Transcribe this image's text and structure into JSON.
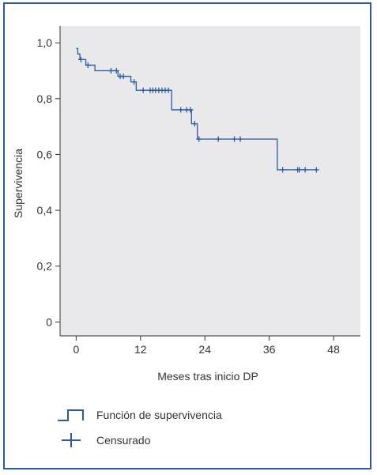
{
  "chart_data": {
    "type": "line",
    "subtype": "kaplan-meier-step",
    "xlabel": "Meses tras inicio DP",
    "ylabel": "Supervivencia",
    "xlim": [
      -3,
      53
    ],
    "ylim": [
      -0.05,
      1.06
    ],
    "xticks": [
      0,
      12,
      24,
      36,
      48
    ],
    "xtick_labels": [
      "0",
      "12",
      "24",
      "36",
      "48"
    ],
    "yticks": [
      0,
      0.2,
      0.4,
      0.6,
      0.8,
      1.0
    ],
    "ytick_labels": [
      "0",
      "0,2",
      "0,4",
      "0,6",
      "0,8",
      "1,0"
    ],
    "grid": false,
    "colors": {
      "plot_bg": "#e9e9eb",
      "series": "#2b5aa0",
      "frame": "#2b5aa0",
      "axis": "#333333"
    },
    "series": [
      {
        "name": "Función de supervivencia",
        "kind": "step",
        "points": [
          [
            0,
            0.98
          ],
          [
            0.3,
            0.96
          ],
          [
            0.7,
            0.94
          ],
          [
            1.8,
            0.92
          ],
          [
            3.5,
            0.9
          ],
          [
            7.8,
            0.88
          ],
          [
            10.2,
            0.86
          ],
          [
            11.2,
            0.83
          ],
          [
            17.8,
            0.76
          ],
          [
            21.5,
            0.71
          ],
          [
            22.6,
            0.655
          ],
          [
            37.5,
            0.545
          ],
          [
            44.8,
            0.545
          ]
        ]
      },
      {
        "name": "Censurado",
        "kind": "censor",
        "points": [
          [
            0.9,
            0.94
          ],
          [
            2.2,
            0.92
          ],
          [
            6.5,
            0.9
          ],
          [
            7.5,
            0.9
          ],
          [
            8.2,
            0.88
          ],
          [
            8.8,
            0.88
          ],
          [
            10.8,
            0.86
          ],
          [
            12.5,
            0.83
          ],
          [
            13.8,
            0.83
          ],
          [
            14.3,
            0.83
          ],
          [
            14.8,
            0.83
          ],
          [
            15.4,
            0.83
          ],
          [
            16.0,
            0.83
          ],
          [
            16.6,
            0.83
          ],
          [
            17.2,
            0.83
          ],
          [
            19.5,
            0.76
          ],
          [
            20.6,
            0.76
          ],
          [
            21.3,
            0.76
          ],
          [
            22.1,
            0.71
          ],
          [
            22.9,
            0.655
          ],
          [
            26.5,
            0.655
          ],
          [
            29.5,
            0.655
          ],
          [
            30.6,
            0.655
          ],
          [
            38.5,
            0.545
          ],
          [
            41.3,
            0.545
          ],
          [
            41.6,
            0.545
          ],
          [
            42.7,
            0.545
          ],
          [
            44.8,
            0.545
          ]
        ]
      }
    ]
  },
  "legend": [
    {
      "label": "Función de supervivencia",
      "icon": "step-line-icon"
    },
    {
      "label": "Censurado",
      "icon": "plus-icon"
    }
  ]
}
